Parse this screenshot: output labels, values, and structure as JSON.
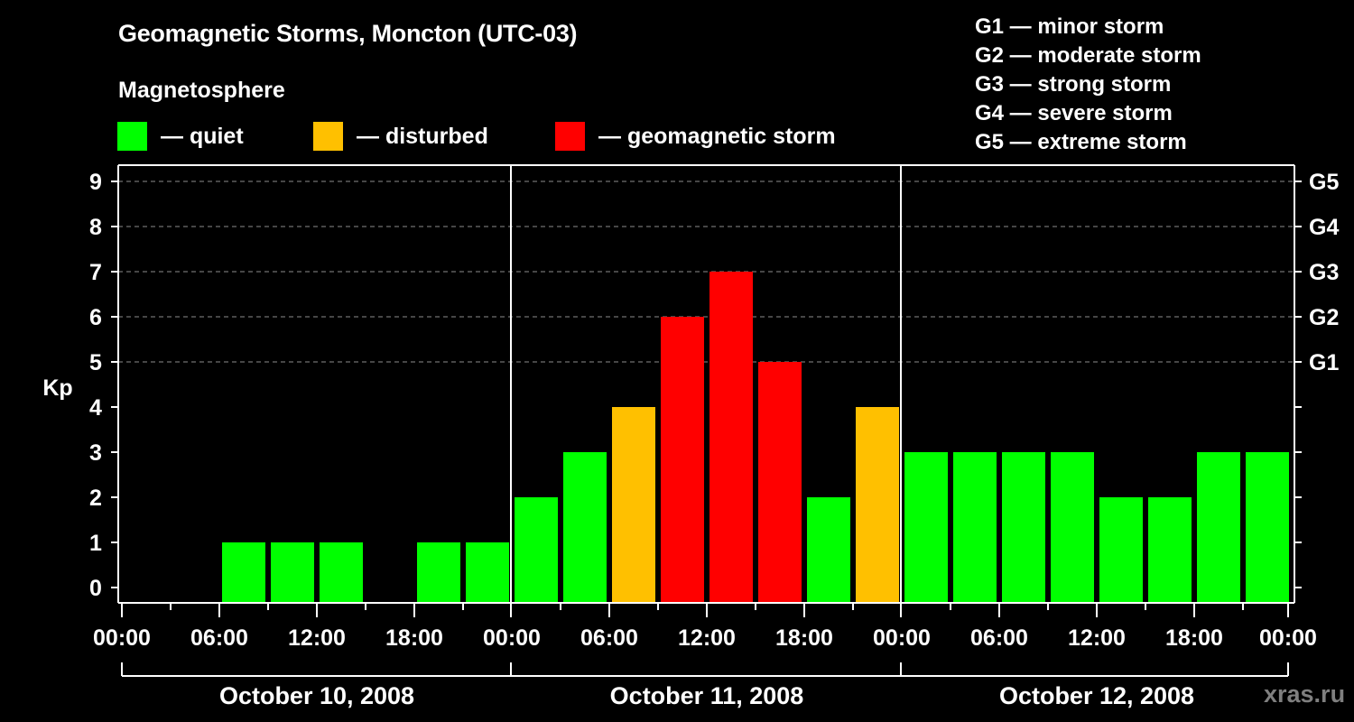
{
  "header": {
    "title": "Geomagnetic Storms, Moncton (UTC-03)",
    "subtitle": "Magnetosphere"
  },
  "legend": [
    {
      "label": "— quiet",
      "color": "#00ff00",
      "x": 130
    },
    {
      "label": "— disturbed",
      "color": "#ffc000",
      "x": 347
    },
    {
      "label": "— geomagnetic storm",
      "color": "#ff0000",
      "x": 615
    }
  ],
  "storm_scale": [
    {
      "label": "G1 — minor storm"
    },
    {
      "label": "G2 — moderate storm"
    },
    {
      "label": "G3 — strong storm"
    },
    {
      "label": "G4 — severe storm"
    },
    {
      "label": "G5 — extreme storm"
    }
  ],
  "watermark": "xras.ru",
  "colors": {
    "quiet": "#00ff00",
    "disturbed": "#ffc000",
    "storm": "#ff0000",
    "grid": "#8c8c8c",
    "axis": "#ffffff"
  },
  "chart_data": {
    "type": "bar",
    "title": "Geomagnetic Storms, Moncton (UTC-03)",
    "xlabel": "",
    "ylabel": "Kp",
    "ylim": [
      0,
      9
    ],
    "grid": "dashed horizontal at Kp 5-9",
    "y_ticks": [
      "0",
      "1",
      "2",
      "3",
      "4",
      "5",
      "6",
      "7",
      "8",
      "9"
    ],
    "right_axis_labels": [
      {
        "kp": 5,
        "label": "G1"
      },
      {
        "kp": 6,
        "label": "G2"
      },
      {
        "kp": 7,
        "label": "G3"
      },
      {
        "kp": 8,
        "label": "G4"
      },
      {
        "kp": 9,
        "label": "G5"
      }
    ],
    "x_tick_labels": [
      "00:00",
      "06:00",
      "12:00",
      "18:00",
      "00:00",
      "06:00",
      "12:00",
      "18:00",
      "00:00",
      "06:00",
      "12:00",
      "18:00",
      "00:00"
    ],
    "days": [
      {
        "label": "October 10, 2008",
        "values": [
          0,
          0,
          1,
          1,
          1,
          0,
          1,
          1
        ]
      },
      {
        "label": "October 11, 2008",
        "values": [
          2,
          3,
          4,
          6,
          7,
          5,
          2,
          4
        ]
      },
      {
        "label": "October 12, 2008",
        "values": [
          3,
          3,
          3,
          3,
          2,
          2,
          3,
          3
        ]
      }
    ],
    "categories": [
      "Oct 10 00-03",
      "Oct 10 03-06",
      "Oct 10 06-09",
      "Oct 10 09-12",
      "Oct 10 12-15",
      "Oct 10 15-18",
      "Oct 10 18-21",
      "Oct 10 21-24",
      "Oct 11 00-03",
      "Oct 11 03-06",
      "Oct 11 06-09",
      "Oct 11 09-12",
      "Oct 11 12-15",
      "Oct 11 15-18",
      "Oct 11 18-21",
      "Oct 11 21-24",
      "Oct 12 00-03",
      "Oct 12 03-06",
      "Oct 12 06-09",
      "Oct 12 09-12",
      "Oct 12 12-15",
      "Oct 12 15-18",
      "Oct 12 18-21",
      "Oct 12 21-24"
    ],
    "values": [
      0,
      0,
      1,
      1,
      1,
      0,
      1,
      1,
      2,
      3,
      4,
      6,
      7,
      5,
      2,
      4,
      3,
      3,
      3,
      3,
      2,
      2,
      3,
      3
    ],
    "color_rule": "Kp<=3 quiet (green), Kp=4 disturbed (orange), Kp>=5 storm (red)",
    "legend_position": "top"
  }
}
